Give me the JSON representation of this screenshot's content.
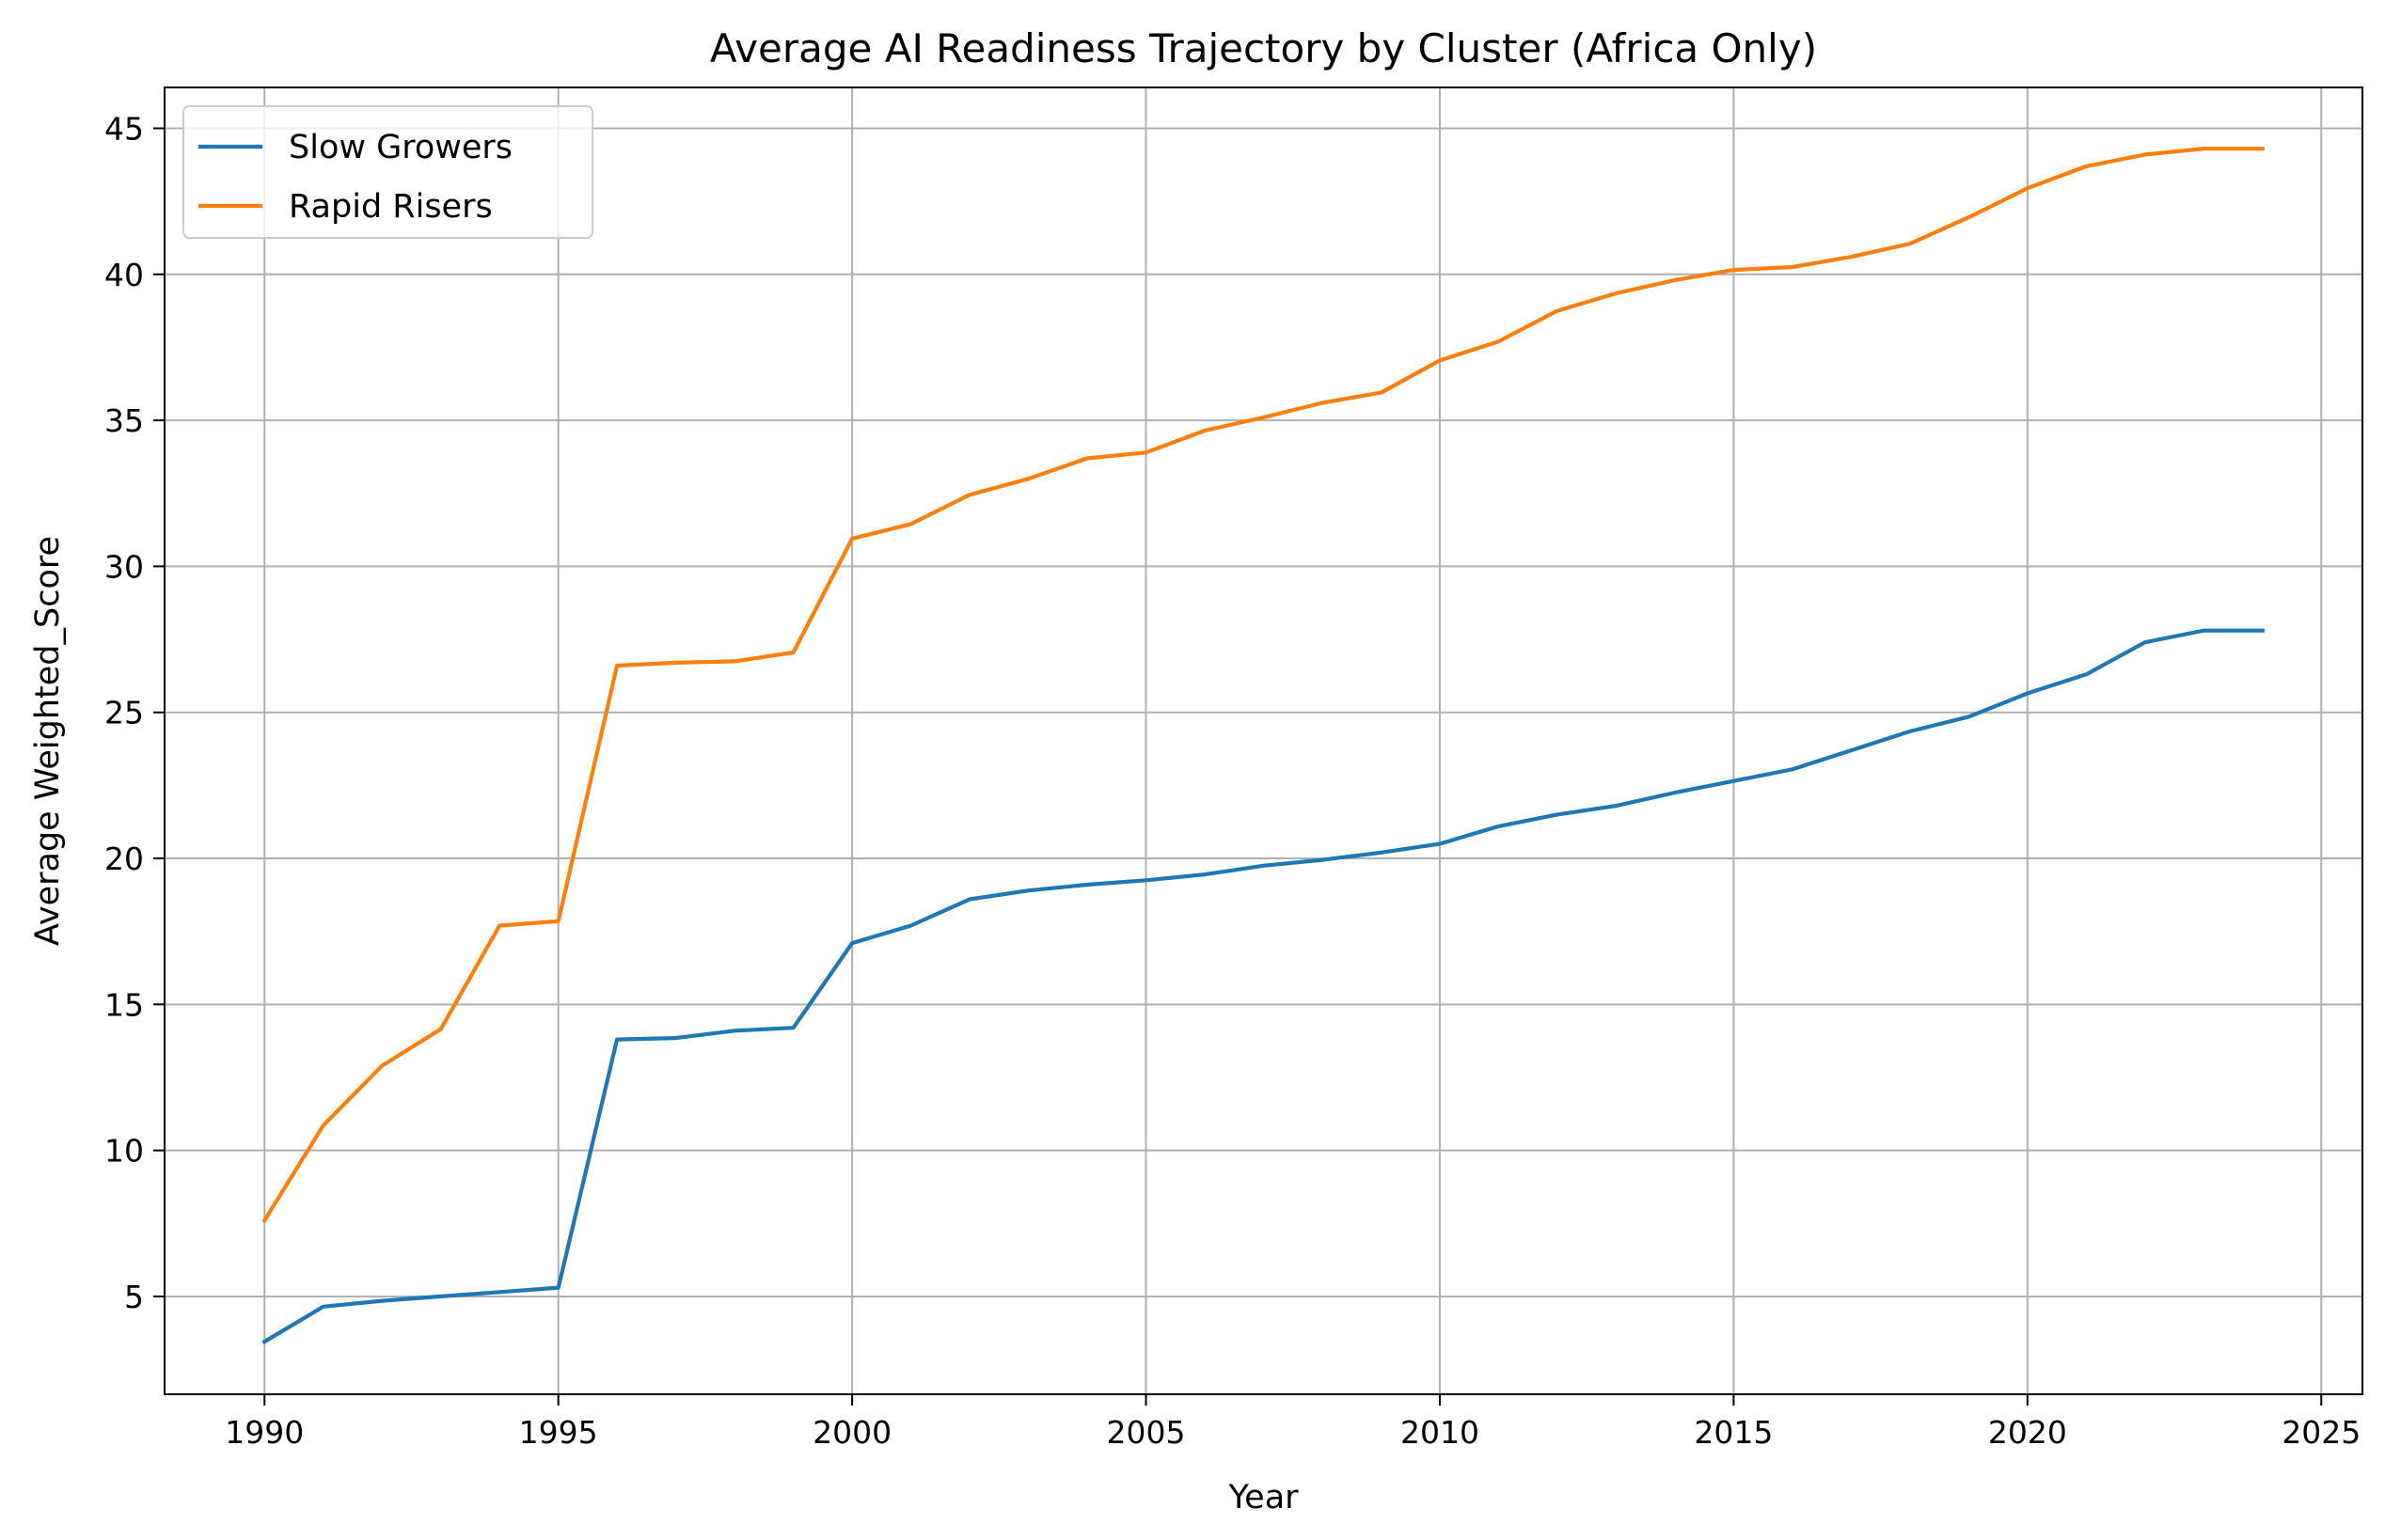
{
  "chart_data": {
    "type": "line",
    "title": "Average AI Readiness Trajectory by Cluster (Africa Only)",
    "xlabel": "Year",
    "ylabel": "Average Weighted_Score",
    "xlim": [
      1988.3,
      2025.7
    ],
    "ylim": [
      1.65,
      46.4
    ],
    "xticks": [
      1990,
      1995,
      2000,
      2005,
      2010,
      2015,
      2020,
      2025
    ],
    "yticks": [
      5,
      10,
      15,
      20,
      25,
      30,
      35,
      40,
      45
    ],
    "grid": true,
    "legend_position": "top-left",
    "x": [
      1990,
      1991,
      1992,
      1993,
      1994,
      1995,
      1996,
      1997,
      1998,
      1999,
      2000,
      2001,
      2002,
      2003,
      2004,
      2005,
      2006,
      2007,
      2008,
      2009,
      2010,
      2011,
      2012,
      2013,
      2014,
      2015,
      2016,
      2017,
      2018,
      2019,
      2020,
      2021,
      2022,
      2023,
      2024
    ],
    "series": [
      {
        "name": "Slow Growers",
        "color": "#1f77b4",
        "values": [
          3.45,
          4.65,
          4.85,
          5.0,
          5.15,
          5.3,
          13.8,
          13.85,
          14.1,
          14.2,
          17.1,
          17.7,
          18.6,
          18.9,
          19.1,
          19.25,
          19.45,
          19.75,
          19.95,
          20.2,
          20.5,
          21.1,
          21.5,
          21.8,
          22.25,
          22.65,
          23.05,
          23.7,
          24.35,
          24.85,
          25.65,
          26.3,
          27.4,
          27.8,
          27.8
        ]
      },
      {
        "name": "Rapid Risers",
        "color": "#ff7f0e",
        "values": [
          7.6,
          10.85,
          12.9,
          14.15,
          17.7,
          17.85,
          26.6,
          26.7,
          26.75,
          27.05,
          30.95,
          31.45,
          32.45,
          33.0,
          33.7,
          33.9,
          34.65,
          35.1,
          35.6,
          35.95,
          37.05,
          37.7,
          38.75,
          39.35,
          39.8,
          40.15,
          40.25,
          40.6,
          41.05,
          41.95,
          42.95,
          43.7,
          44.1,
          44.3,
          44.3
        ]
      }
    ]
  }
}
